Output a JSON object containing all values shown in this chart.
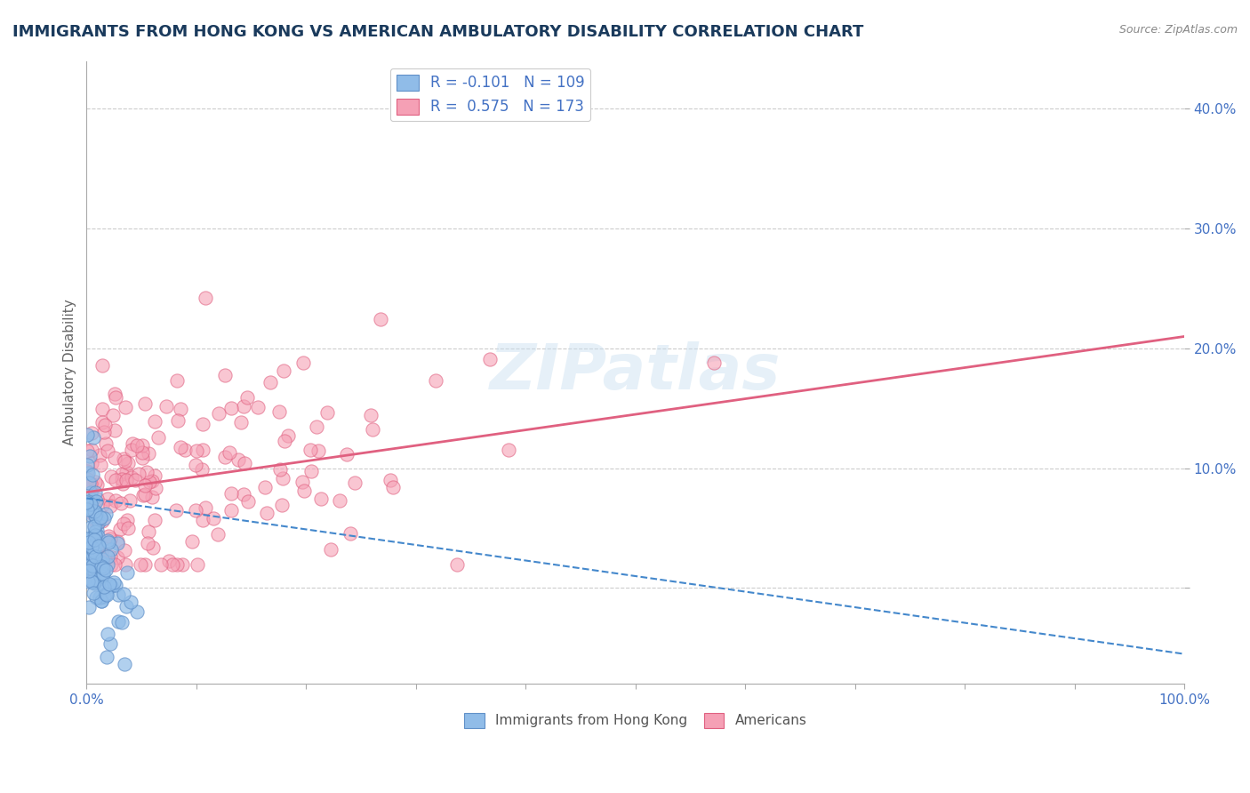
{
  "title": "IMMIGRANTS FROM HONG KONG VS AMERICAN AMBULATORY DISABILITY CORRELATION CHART",
  "source": "Source: ZipAtlas.com",
  "ylabel": "Ambulatory Disability",
  "xlim": [
    0,
    1.0
  ],
  "ylim": [
    -0.08,
    0.44
  ],
  "blue_R": -0.101,
  "blue_N": 109,
  "pink_R": 0.575,
  "pink_N": 173,
  "blue_color": "#90bce8",
  "pink_color": "#f5a0b5",
  "blue_edge_color": "#6090c8",
  "pink_edge_color": "#e06080",
  "blue_line_color": "#4488cc",
  "pink_line_color": "#e06080",
  "legend_label_blue": "Immigrants from Hong Kong",
  "legend_label_pink": "Americans",
  "watermark": "ZIPatlas",
  "title_color": "#1a3a5c",
  "axis_color": "#4472c4",
  "grid_color": "#cccccc"
}
